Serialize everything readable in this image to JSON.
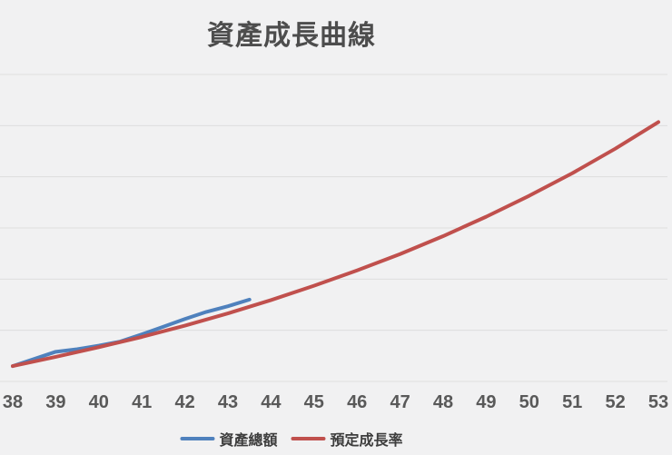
{
  "page": {
    "background_color": "#f1f1f2",
    "gridline_color": "#dedede",
    "title_color": "#4d4d4d",
    "tick_label_color": "#595959"
  },
  "chart_data": {
    "type": "line",
    "title": "資產成長曲線",
    "xlabel": "",
    "ylabel": "",
    "x_range": [
      38,
      53
    ],
    "x_tick_labels": [
      "38",
      "39",
      "40",
      "41",
      "42",
      "43",
      "44",
      "45",
      "46",
      "47",
      "48",
      "49",
      "50",
      "51",
      "52",
      "53"
    ],
    "y_axis": {
      "labeled": false,
      "gridline_count": 7,
      "value_at_bottom_gridline": 0,
      "value_at_top_gridline": 6,
      "unit": "gridline-units (no y tick labels visible)"
    },
    "grid": true,
    "legend_position": "bottom-center",
    "series": [
      {
        "name": "資產總額",
        "color": "#4f81bd",
        "points": [
          [
            38,
            0.3
          ],
          [
            39,
            0.58
          ],
          [
            39.5,
            0.63
          ],
          [
            40,
            0.7
          ],
          [
            40.5,
            0.78
          ],
          [
            41,
            0.92
          ],
          [
            41.5,
            1.07
          ],
          [
            42,
            1.22
          ],
          [
            42.5,
            1.36
          ],
          [
            43,
            1.47
          ],
          [
            43.5,
            1.6
          ]
        ]
      },
      {
        "name": "預定成長率",
        "color": "#c0504d",
        "points": [
          [
            38,
            0.3
          ],
          [
            39,
            0.48
          ],
          [
            40,
            0.67
          ],
          [
            41,
            0.87
          ],
          [
            42,
            1.09
          ],
          [
            43,
            1.33
          ],
          [
            44,
            1.59
          ],
          [
            45,
            1.87
          ],
          [
            46,
            2.17
          ],
          [
            47,
            2.49
          ],
          [
            48,
            2.84
          ],
          [
            49,
            3.22
          ],
          [
            50,
            3.63
          ],
          [
            51,
            4.07
          ],
          [
            52,
            4.55
          ],
          [
            53,
            5.07
          ]
        ]
      }
    ]
  },
  "legend": {
    "items": [
      {
        "label": "資產總額",
        "color": "#4f81bd"
      },
      {
        "label": "預定成長率",
        "color": "#c0504d"
      }
    ]
  }
}
